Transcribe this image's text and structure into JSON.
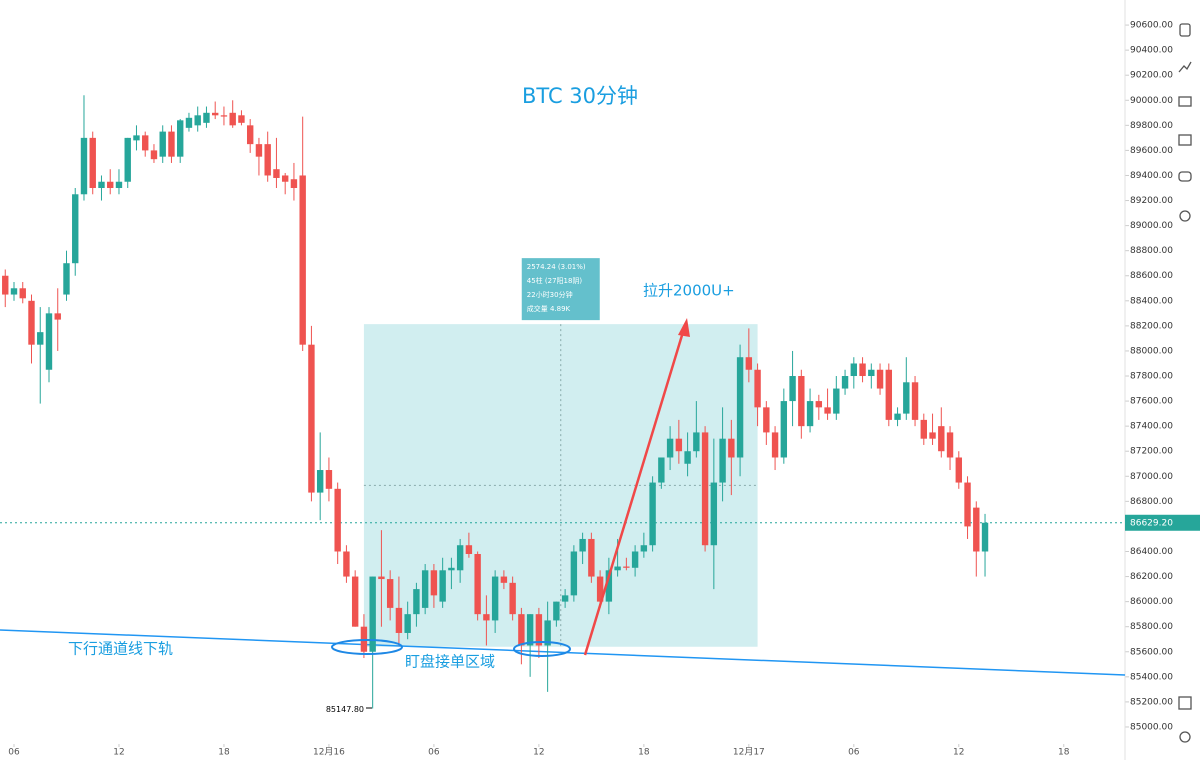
{
  "chart_data": {
    "type": "candlestick",
    "title": "BTC    30分钟",
    "x": [
      5.5,
      6,
      6.5,
      7,
      7.5,
      8,
      8.5,
      9,
      9.5,
      10,
      10.5,
      11,
      11.5,
      12,
      12.5,
      13,
      13.5,
      14,
      14.5,
      15,
      15.5,
      16,
      16.5,
      17,
      17.5,
      18,
      18.5,
      19,
      19.5,
      20,
      20.5,
      21,
      21.5,
      22,
      22.5,
      23,
      23.5,
      24,
      24.5,
      25,
      25.5,
      26,
      26.5,
      27,
      27.5,
      28,
      28.5,
      29,
      29.5,
      30,
      30.5,
      31,
      31.5,
      32,
      32.5,
      33,
      33.5,
      34,
      34.5,
      35,
      35.5,
      36,
      36.5,
      37,
      37.5,
      38,
      38.5,
      39,
      39.5,
      40,
      40.5,
      41,
      41.5,
      42,
      42.5,
      43,
      43.5,
      44,
      44.5,
      45,
      45.5,
      46,
      46.5,
      47,
      47.5,
      48,
      48.5,
      49,
      49.5,
      50,
      50.5,
      51,
      51.5,
      52,
      52.5,
      53,
      53.5,
      54,
      54.5,
      55,
      55.5,
      56,
      56.5,
      57,
      57.5,
      58,
      58.5,
      59,
      59.5,
      60,
      60.5,
      61,
      61.5
    ],
    "open": [
      88600,
      88450,
      88500,
      88400,
      88050,
      87850,
      88300,
      88450,
      88700,
      89250,
      89700,
      89300,
      89350,
      89300,
      89350,
      89680,
      89720,
      89600,
      89550,
      89750,
      89550,
      89780,
      89800,
      89820,
      89900,
      89880,
      89900,
      89880,
      89800,
      89650,
      89650,
      89450,
      89400,
      89370,
      89400,
      88050,
      86870,
      87050,
      86900,
      86400,
      86200,
      85800,
      85600,
      86200,
      86180,
      85950,
      85750,
      85900,
      85950,
      86250,
      86000,
      86250,
      86250,
      86450,
      86380,
      85900,
      85850,
      86200,
      86150,
      85900,
      85650,
      85900,
      85650,
      85850,
      86000,
      86050,
      86400,
      86500,
      86200,
      86000,
      86250,
      86280,
      86270,
      86400,
      86450,
      86950,
      87150,
      87300,
      87100,
      87200,
      87350,
      86450,
      86950,
      87300,
      87150,
      87950,
      87850,
      87550,
      87350,
      87150,
      87600,
      87800,
      87400,
      87600,
      87550,
      87500,
      87700,
      87800,
      87900,
      87800,
      87850,
      87850,
      87450,
      87500,
      87750,
      87450,
      87350,
      87400,
      87350,
      87150,
      86950,
      86750,
      86400
    ],
    "high": [
      88650,
      88550,
      88550,
      88450,
      88350,
      88350,
      88500,
      88800,
      89300,
      90040,
      89750,
      89400,
      89450,
      89450,
      89700,
      89800,
      89750,
      89650,
      89800,
      89800,
      89850,
      89900,
      89950,
      89950,
      89990,
      89950,
      90000,
      89920,
      89850,
      89700,
      89750,
      89700,
      89420,
      89500,
      89870,
      88200,
      87350,
      87150,
      86950,
      86450,
      86250,
      85900,
      86200,
      86570,
      86250,
      86200,
      86000,
      86150,
      86300,
      86300,
      86350,
      86350,
      86500,
      86550,
      86400,
      86050,
      86250,
      86250,
      86200,
      85950,
      85900,
      85950,
      86000,
      86000,
      86100,
      86450,
      86550,
      86550,
      86250,
      86350,
      86500,
      86350,
      86450,
      86550,
      87000,
      87150,
      87400,
      87450,
      87350,
      87600,
      87400,
      87300,
      87550,
      87450,
      88050,
      88180,
      87900,
      87600,
      87400,
      87700,
      88000,
      87850,
      87700,
      87650,
      87700,
      87800,
      87850,
      87950,
      87950,
      87900,
      87900,
      87900,
      87550,
      87950,
      87800,
      87500,
      87500,
      87550,
      87400,
      87200,
      87000,
      86800,
      86700
    ],
    "low": [
      88350,
      88400,
      88380,
      87900,
      87580,
      87750,
      88000,
      88400,
      88600,
      89200,
      89250,
      89200,
      89250,
      89250,
      89300,
      89600,
      89550,
      89500,
      89500,
      89500,
      89500,
      89750,
      89750,
      89780,
      89850,
      89800,
      89780,
      89800,
      89580,
      89400,
      89350,
      89300,
      89250,
      89200,
      88000,
      86800,
      86650,
      86800,
      86300,
      86150,
      85800,
      85550,
      85147.8,
      85800,
      85850,
      85650,
      85700,
      85800,
      85900,
      85950,
      85950,
      86100,
      86150,
      86350,
      85850,
      85650,
      85750,
      86100,
      85850,
      85500,
      85400,
      85550,
      85280,
      85800,
      85950,
      86000,
      86300,
      86150,
      85950,
      85900,
      86200,
      86250,
      86200,
      86350,
      86400,
      86900,
      87050,
      87100,
      87000,
      87150,
      86400,
      86100,
      86800,
      86850,
      87000,
      87750,
      87400,
      87250,
      87050,
      87100,
      87400,
      87300,
      87350,
      87450,
      87450,
      87450,
      87650,
      87700,
      87750,
      87700,
      87650,
      87400,
      87400,
      87450,
      87400,
      87250,
      87250,
      87150,
      87050,
      86900,
      86500,
      86200,
      86200
    ],
    "close": [
      88450,
      88500,
      88420,
      88050,
      88150,
      88300,
      88250,
      88700,
      89250,
      89700,
      89300,
      89350,
      89300,
      89350,
      89700,
      89720,
      89600,
      89530,
      89750,
      89550,
      89840,
      89860,
      89880,
      89900,
      89880,
      89870,
      89800,
      89820,
      89650,
      89550,
      89400,
      89380,
      89350,
      89300,
      88050,
      86870,
      87050,
      86900,
      86400,
      86200,
      85800,
      85600,
      86200,
      86180,
      85950,
      85750,
      85900,
      86100,
      86250,
      86050,
      86250,
      86270,
      86450,
      86380,
      85900,
      85850,
      86200,
      86150,
      85900,
      85650,
      85900,
      85650,
      85850,
      86000,
      86050,
      86400,
      86500,
      86200,
      86000,
      86250,
      86280,
      86270,
      86400,
      86450,
      86950,
      87150,
      87300,
      87200,
      87200,
      87350,
      86450,
      86950,
      87300,
      87150,
      87950,
      87850,
      87550,
      87350,
      87150,
      87600,
      87800,
      87400,
      87600,
      87550,
      87500,
      87700,
      87800,
      87900,
      87800,
      87850,
      87700,
      87450,
      87500,
      87750,
      87450,
      87300,
      87300,
      87200,
      87150,
      86950,
      86600,
      86400,
      86629.2
    ],
    "up_color": "#26a69a",
    "down_color": "#ef5350",
    "xlim": [
      5.2,
      69.5
    ],
    "ylim": [
      84896,
      90800
    ],
    "xticks": [
      {
        "value": 6,
        "label": "06"
      },
      {
        "value": 12,
        "label": "12"
      },
      {
        "value": 18,
        "label": "18"
      },
      {
        "value": 24,
        "label": "12月16"
      },
      {
        "value": 30,
        "label": "06"
      },
      {
        "value": 36,
        "label": "12"
      },
      {
        "value": 42,
        "label": "18"
      },
      {
        "value": 48,
        "label": "12月17"
      },
      {
        "value": 54,
        "label": "06"
      },
      {
        "value": 60,
        "label": "12"
      },
      {
        "value": 66,
        "label": "18"
      }
    ],
    "yticks": [
      {
        "value": 85000,
        "label": "85000.00"
      },
      {
        "value": 85200,
        "label": "85200.00"
      },
      {
        "value": 85400,
        "label": "85400.00"
      },
      {
        "value": 85600,
        "label": "85600.00"
      },
      {
        "value": 85800,
        "label": "85800.00"
      },
      {
        "value": 86000,
        "label": "86000.00"
      },
      {
        "value": 86200,
        "label": "86200.00"
      },
      {
        "value": 86400,
        "label": "86400.00"
      },
      {
        "value": 86600,
        "label": "86600.00"
      },
      {
        "value": 86800,
        "label": "86800.00"
      },
      {
        "value": 87000,
        "label": "87000.00"
      },
      {
        "value": 87200,
        "label": "87200.00"
      },
      {
        "value": 87400,
        "label": "87400.00"
      },
      {
        "value": 87600,
        "label": "87600.00"
      },
      {
        "value": 87800,
        "label": "87800.00"
      },
      {
        "value": 88000,
        "label": "88000.00"
      },
      {
        "value": 88200,
        "label": "88200.00"
      },
      {
        "value": 88400,
        "label": "88400.00"
      },
      {
        "value": 88600,
        "label": "88600.00"
      },
      {
        "value": 88800,
        "label": "88800.00"
      },
      {
        "value": 89000,
        "label": "89000.00"
      },
      {
        "value": 89200,
        "label": "89200.00"
      },
      {
        "value": 89400,
        "label": "89400.00"
      },
      {
        "value": 89600,
        "label": "89600.00"
      },
      {
        "value": 89800,
        "label": "89800.00"
      },
      {
        "value": 90000,
        "label": "90000.00"
      },
      {
        "value": 90200,
        "label": "90200.00"
      },
      {
        "value": 90400,
        "label": "90400.00"
      },
      {
        "value": 90600,
        "label": "90600.00"
      }
    ],
    "price_line": {
      "value": 86629.2,
      "label": "86629.20"
    },
    "low_marker": {
      "value": 85147.8,
      "label": "85147.80"
    },
    "measure": {
      "x": [
        26,
        48.5
      ],
      "price": [
        85640,
        88214
      ],
      "color": "#b2e3e6",
      "lines": [
        "2574.24 (3.01%)",
        "45柱 (27阳18阴)",
        "22小时30分钟",
        "成交量 4.89K"
      ]
    },
    "channel": {
      "x": [
        5.2,
        69.5
      ],
      "price": [
        85774,
        85415
      ],
      "color": "#2196f3"
    },
    "annotations": [
      "拉升2000U+",
      "下行通道线下轨",
      "盯盘接单区域"
    ]
  }
}
